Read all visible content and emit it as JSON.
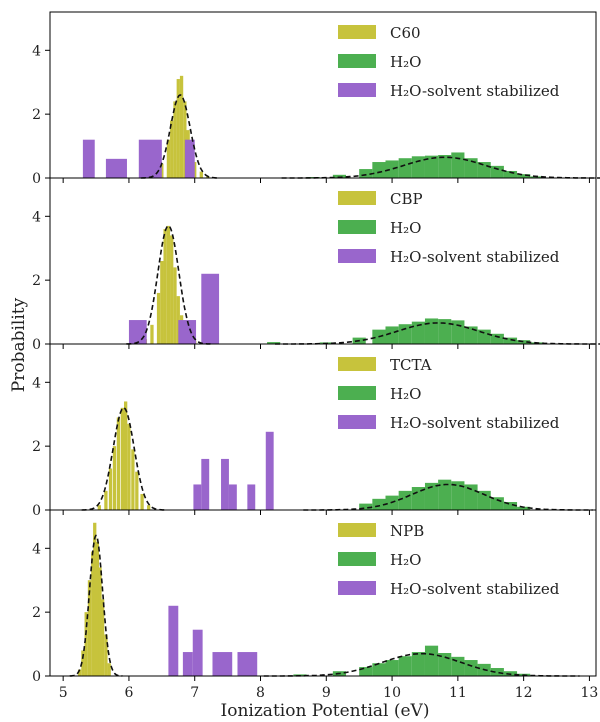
{
  "colors": {
    "molecule": "#c7c33c",
    "water": "#4caf50",
    "stabilized": "#9966cc",
    "fit": "#111111"
  },
  "chart_data": {
    "type": "bar",
    "xlabel": "Ionization Potential (eV)",
    "ylabel": "Probability",
    "xlim": [
      4.8,
      13.1
    ],
    "ylim": [
      0,
      5.2
    ],
    "x_ticks": [
      5,
      6,
      7,
      8,
      9,
      10,
      11,
      12,
      13
    ],
    "y_ticks": [
      0,
      2,
      4
    ],
    "legend_placement": "top-right",
    "panels": [
      {
        "legend": [
          "C60",
          "H₂O",
          "H₂O-solvent stabilized"
        ],
        "molecule_fit": {
          "mean": 6.78,
          "sigma": 0.15,
          "amplitude": 2.6
        },
        "water_fit": {
          "mean": 10.8,
          "sigma": 0.62,
          "amplitude": 0.65
        },
        "molecule_hist": [
          [
            6.4,
            0.1
          ],
          [
            6.5,
            0.45
          ],
          [
            6.6,
            1.2
          ],
          [
            6.65,
            1.8
          ],
          [
            6.7,
            2.4
          ],
          [
            6.75,
            3.1
          ],
          [
            6.8,
            3.2
          ],
          [
            6.85,
            2.4
          ],
          [
            6.9,
            1.5
          ],
          [
            6.95,
            0.9
          ],
          [
            7.0,
            0.5
          ],
          [
            7.1,
            0.2
          ],
          [
            7.2,
            0.05
          ]
        ],
        "water_hist": [
          [
            8.8,
            0.03
          ],
          [
            9.2,
            0.1
          ],
          [
            9.6,
            0.28
          ],
          [
            9.8,
            0.5
          ],
          [
            10.0,
            0.55
          ],
          [
            10.2,
            0.62
          ],
          [
            10.4,
            0.68
          ],
          [
            10.6,
            0.7
          ],
          [
            10.8,
            0.72
          ],
          [
            11.0,
            0.8
          ],
          [
            11.2,
            0.62
          ],
          [
            11.4,
            0.5
          ],
          [
            11.6,
            0.38
          ],
          [
            11.8,
            0.22
          ],
          [
            12.0,
            0.12
          ],
          [
            12.2,
            0.05
          ]
        ],
        "stabilized_bars": [
          [
            5.3,
            5.48,
            1.2
          ],
          [
            5.65,
            5.97,
            0.6
          ],
          [
            6.15,
            6.5,
            1.2
          ],
          [
            6.85,
            7.0,
            1.2
          ]
        ]
      },
      {
        "legend": [
          "CBP",
          "H₂O",
          "H₂O-solvent stabilized"
        ],
        "molecule_fit": {
          "mean": 6.6,
          "sigma": 0.16,
          "amplitude": 3.7
        },
        "water_fit": {
          "mean": 10.7,
          "sigma": 0.62,
          "amplitude": 0.66
        },
        "molecule_hist": [
          [
            6.25,
            0.15
          ],
          [
            6.35,
            0.6
          ],
          [
            6.45,
            1.6
          ],
          [
            6.5,
            2.6
          ],
          [
            6.55,
            3.6
          ],
          [
            6.6,
            3.7
          ],
          [
            6.65,
            3.4
          ],
          [
            6.7,
            2.4
          ],
          [
            6.75,
            1.5
          ],
          [
            6.8,
            0.9
          ],
          [
            6.9,
            0.4
          ],
          [
            7.0,
            0.1
          ]
        ],
        "water_hist": [
          [
            8.2,
            0.06
          ],
          [
            9.0,
            0.05
          ],
          [
            9.5,
            0.2
          ],
          [
            9.8,
            0.45
          ],
          [
            10.0,
            0.55
          ],
          [
            10.2,
            0.62
          ],
          [
            10.4,
            0.7
          ],
          [
            10.6,
            0.8
          ],
          [
            10.8,
            0.78
          ],
          [
            11.0,
            0.74
          ],
          [
            11.2,
            0.55
          ],
          [
            11.4,
            0.45
          ],
          [
            11.6,
            0.32
          ],
          [
            11.8,
            0.2
          ],
          [
            12.0,
            0.12
          ],
          [
            12.2,
            0.05
          ]
        ],
        "stabilized_bars": [
          [
            6.0,
            6.27,
            0.75
          ],
          [
            6.75,
            7.02,
            0.75
          ],
          [
            7.1,
            7.37,
            2.2
          ]
        ]
      },
      {
        "legend": [
          "TCTA",
          "H₂O",
          "H₂O-solvent stabilized"
        ],
        "molecule_fit": {
          "mean": 5.92,
          "sigma": 0.16,
          "amplitude": 3.2
        },
        "water_fit": {
          "mean": 10.85,
          "sigma": 0.55,
          "amplitude": 0.8
        },
        "molecule_hist": [
          [
            5.55,
            0.15
          ],
          [
            5.65,
            0.6
          ],
          [
            5.72,
            1.3
          ],
          [
            5.78,
            2.0
          ],
          [
            5.84,
            2.9
          ],
          [
            5.9,
            3.2
          ],
          [
            5.95,
            3.4
          ],
          [
            6.0,
            2.7
          ],
          [
            6.06,
            1.9
          ],
          [
            6.12,
            1.2
          ],
          [
            6.2,
            0.5
          ],
          [
            6.3,
            0.15
          ]
        ],
        "water_hist": [
          [
            9.6,
            0.2
          ],
          [
            9.8,
            0.35
          ],
          [
            10.0,
            0.45
          ],
          [
            10.2,
            0.6
          ],
          [
            10.4,
            0.72
          ],
          [
            10.6,
            0.85
          ],
          [
            10.8,
            0.95
          ],
          [
            11.0,
            0.9
          ],
          [
            11.2,
            0.8
          ],
          [
            11.4,
            0.6
          ],
          [
            11.6,
            0.4
          ],
          [
            11.8,
            0.25
          ],
          [
            12.0,
            0.1
          ]
        ],
        "stabilized_bars": [
          [
            6.98,
            7.1,
            0.8
          ],
          [
            7.1,
            7.22,
            1.6
          ],
          [
            7.4,
            7.52,
            1.6
          ],
          [
            7.52,
            7.64,
            0.8
          ],
          [
            7.8,
            7.92,
            0.8
          ],
          [
            8.08,
            8.2,
            2.45
          ]
        ]
      },
      {
        "legend": [
          "NPB",
          "H₂O",
          "H₂O-solvent stabilized"
        ],
        "molecule_fit": {
          "mean": 5.5,
          "sigma": 0.1,
          "amplitude": 4.4
        },
        "water_fit": {
          "mean": 10.45,
          "sigma": 0.6,
          "amplitude": 0.7
        },
        "molecule_hist": [
          [
            5.25,
            0.2
          ],
          [
            5.3,
            0.8
          ],
          [
            5.35,
            2.0
          ],
          [
            5.4,
            3.0
          ],
          [
            5.45,
            3.9
          ],
          [
            5.48,
            4.8
          ],
          [
            5.52,
            4.2
          ],
          [
            5.56,
            3.4
          ],
          [
            5.6,
            2.4
          ],
          [
            5.65,
            1.3
          ],
          [
            5.7,
            0.4
          ]
        ],
        "water_hist": [
          [
            8.6,
            0.05
          ],
          [
            9.2,
            0.15
          ],
          [
            9.6,
            0.28
          ],
          [
            9.8,
            0.4
          ],
          [
            10.0,
            0.5
          ],
          [
            10.2,
            0.62
          ],
          [
            10.4,
            0.75
          ],
          [
            10.6,
            0.95
          ],
          [
            10.8,
            0.72
          ],
          [
            11.0,
            0.6
          ],
          [
            11.2,
            0.5
          ],
          [
            11.4,
            0.38
          ],
          [
            11.6,
            0.25
          ],
          [
            11.8,
            0.15
          ],
          [
            12.0,
            0.07
          ]
        ],
        "stabilized_bars": [
          [
            6.6,
            6.75,
            2.2
          ],
          [
            6.82,
            6.97,
            0.75
          ],
          [
            6.97,
            7.12,
            1.45
          ],
          [
            7.27,
            7.57,
            0.75
          ],
          [
            7.65,
            7.95,
            0.75
          ]
        ]
      }
    ]
  }
}
